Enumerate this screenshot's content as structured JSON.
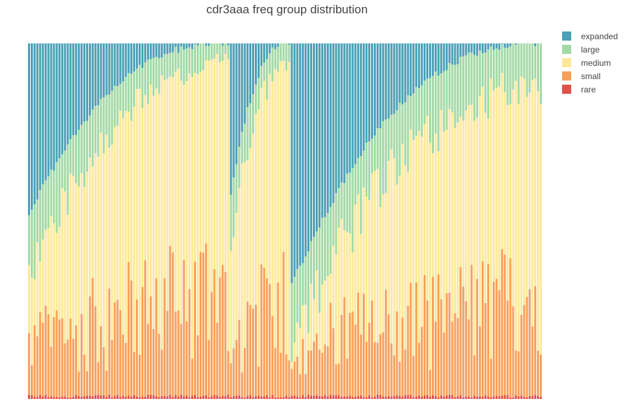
{
  "chart_data": {
    "type": "bar",
    "stacked": true,
    "normalized": true,
    "title": "cdr3aaa freq group distribution",
    "xlabel": "",
    "ylabel": "",
    "ylim": [
      0,
      1
    ],
    "grid": false,
    "axes_visible": false,
    "legend_position": "top-right outside plot",
    "bar_count": 186,
    "stack_order": [
      "rare",
      "small",
      "medium",
      "large",
      "expanded"
    ],
    "series": [
      {
        "name": "expanded",
        "color": "#4aa0b5"
      },
      {
        "name": "large",
        "color": "#a3d9a5"
      },
      {
        "name": "medium",
        "color": "#fde89a"
      },
      {
        "name": "small",
        "color": "#f8a05a"
      },
      {
        "name": "rare",
        "color": "#e1514b"
      }
    ],
    "groups": [
      {
        "bars": 73,
        "expanded_range": [
          0.48,
          0.0
        ],
        "large_range": [
          0.16,
          0.04
        ],
        "small_range": [
          0.14,
          0.3
        ],
        "rare_value": 0.008
      },
      {
        "bars": 22,
        "expanded_range": [
          0.42,
          0.0
        ],
        "large_range": [
          0.12,
          0.05
        ],
        "small_range": [
          0.14,
          0.28
        ],
        "rare_value": 0.008
      },
      {
        "bars": 91,
        "expanded_range": [
          0.68,
          0.0
        ],
        "large_range": [
          0.18,
          0.12
        ],
        "small_range": [
          0.14,
          0.26
        ],
        "rare_value": 0.008
      }
    ]
  }
}
